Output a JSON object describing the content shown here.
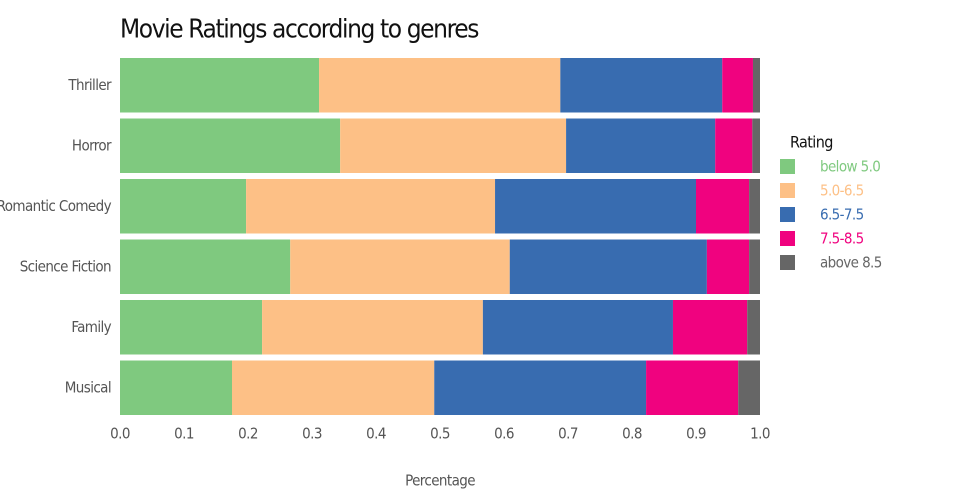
{
  "chart_data": {
    "type": "stacked-bar-horizontal",
    "title": "Movie Ratings according to genres",
    "x_label": "Percentage",
    "legend_title": "Rating",
    "legend_position": "right",
    "categories": [
      "Thriller",
      "Horror",
      "Romantic Comedy",
      "Science Fiction",
      "Family",
      "Musical"
    ],
    "series": [
      {
        "name": "below 5.0",
        "color": "#7fc97f",
        "values": [
          0.311,
          0.344,
          0.197,
          0.266,
          0.222,
          0.175
        ]
      },
      {
        "name": "5.0-6.5",
        "color": "#fdc086",
        "values": [
          0.377,
          0.353,
          0.389,
          0.343,
          0.345,
          0.316
        ]
      },
      {
        "name": "6.5-7.5",
        "color": "#386cb0",
        "values": [
          0.253,
          0.233,
          0.314,
          0.308,
          0.297,
          0.331
        ]
      },
      {
        "name": "7.5-8.5",
        "color": "#f0027f",
        "values": [
          0.048,
          0.058,
          0.083,
          0.066,
          0.116,
          0.144
        ]
      },
      {
        "name": "above 8.5",
        "color": "#666666",
        "values": [
          0.011,
          0.012,
          0.017,
          0.017,
          0.02,
          0.034
        ]
      }
    ],
    "xlim": [
      0,
      1
    ],
    "xticks": [
      {
        "value": 0,
        "label": "0.0"
      },
      0.1,
      0.2,
      0.3,
      0.4,
      0.5,
      0.6,
      0.7,
      0.8,
      0.9,
      {
        "value": 1,
        "label": "1.0"
      }
    ]
  }
}
